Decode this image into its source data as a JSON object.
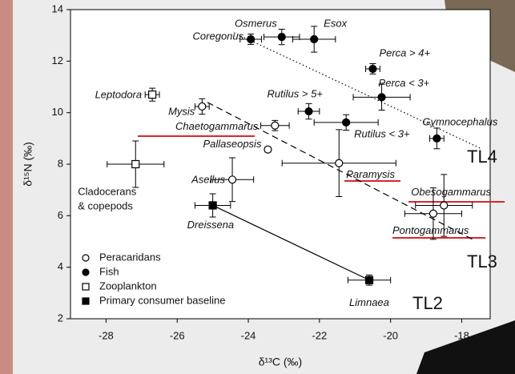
{
  "chart_data": {
    "type": "scatter",
    "x_label": "δ¹³C (‰)",
    "y_label": "δ¹⁵N (‰)",
    "xlim": [
      -29,
      -17.2
    ],
    "ylim": [
      2,
      14
    ],
    "xticks": [
      -28,
      -26,
      -24,
      -22,
      -20,
      -18
    ],
    "yticks": [
      2,
      4,
      6,
      8,
      10,
      12,
      14
    ],
    "series": [
      {
        "name": "Peracaridans",
        "marker": "circle",
        "filled": false,
        "color": "#000000",
        "labels": [
          "Mysis",
          "Chaetogammarus",
          "Pallaseopsis",
          "Paramysis",
          "Asellus",
          "Obesogammarus",
          "Pontogammarus"
        ],
        "x": [
          -25.3,
          -23.25,
          -23.45,
          -21.45,
          -24.45,
          -18.5,
          -18.8
        ],
        "values": [
          10.24,
          9.5,
          8.57,
          8.04,
          7.4,
          6.4,
          6.08
        ],
        "xerr": [
          0.2,
          0.4,
          0.05,
          1.6,
          0.6,
          0.8,
          0.8
        ],
        "yerr": [
          0.3,
          0.2,
          0.1,
          1.3,
          0.85,
          1.2,
          1.0
        ]
      },
      {
        "name": "Fish",
        "marker": "circle",
        "filled": true,
        "color": "#000000",
        "labels": [
          "Coregonus",
          "Osmerus",
          "Esox",
          "Perca > 4+",
          "Perca < 3+",
          "Rutilus > 5+",
          "Rutilus < 3+",
          "Gymnocephalus"
        ],
        "x": [
          -23.93,
          -23.06,
          -22.15,
          -20.5,
          -20.25,
          -22.3,
          -21.25,
          -18.7
        ],
        "values": [
          12.85,
          12.94,
          12.85,
          11.7,
          10.6,
          10.05,
          9.62,
          9.0
        ],
        "xerr": [
          0.3,
          0.5,
          0.6,
          0.2,
          0.8,
          0.3,
          0.9,
          0.2
        ],
        "yerr": [
          0.2,
          0.3,
          0.5,
          0.2,
          0.5,
          0.3,
          0.3,
          0.4
        ]
      },
      {
        "name": "Zooplankton",
        "marker": "square",
        "filled": false,
        "color": "#000000",
        "labels": [
          "Leptodora",
          [
            "Cladocerans",
            "& copepods"
          ]
        ],
        "x": [
          -26.7,
          -27.17
        ],
        "values": [
          10.7,
          8.0
        ],
        "xerr": [
          0.2,
          0.8
        ],
        "yerr": [
          0.25,
          0.9
        ]
      },
      {
        "name": "Primary consumer baseline",
        "marker": "square",
        "filled": true,
        "color": "#000000",
        "labels": [
          "Dreissena",
          "Limnaea"
        ],
        "x": [
          -25.0,
          -20.6
        ],
        "values": [
          6.4,
          3.5
        ],
        "xerr": [
          0.5,
          0.6
        ],
        "yerr": [
          0.45,
          0.2
        ]
      }
    ],
    "lines": [
      {
        "label": "TL2",
        "dash": "solid",
        "x": [
          -25.0,
          -20.6
        ],
        "y": [
          6.4,
          3.5
        ]
      },
      {
        "label": "TL3",
        "dash": "dashed",
        "x": [
          -25.15,
          -17.65
        ],
        "y": [
          10.4,
          5.05
        ]
      },
      {
        "label": "TL4",
        "dash": "dotted",
        "x": [
          -24.4,
          -17.45
        ],
        "y": [
          13.1,
          8.6
        ]
      }
    ]
  }
}
